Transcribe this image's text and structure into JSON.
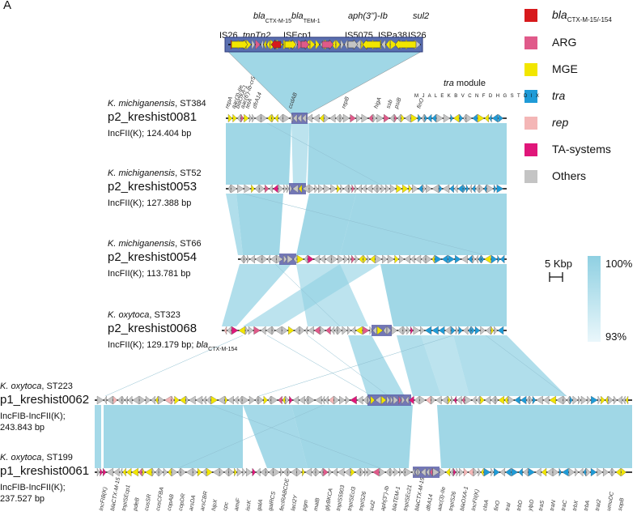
{
  "panel_label": "A",
  "top_labels": [
    "IS26",
    "tnpTn2",
    "blaCTX-M-15",
    "blaTEM-1",
    "ISEcp1",
    "aph(3'')-Ib",
    "IS5075",
    "sul2",
    "ISPa38",
    "IS26"
  ],
  "top_label_display": {
    "is26_left": "IS26",
    "tnptn2": "tnpTn2",
    "bla_ctx_main": "bla",
    "bla_ctx_sub": "CTX-M-15",
    "bla_tem_main": "bla",
    "bla_tem_sub": "TEM-1",
    "isecp1": "ISEcp1",
    "aph": "aph(3'')-Ib",
    "is5075": "IS5075",
    "sul2": "sul2",
    "ispa38": "ISPa38",
    "is26_right": "IS26"
  },
  "legend": {
    "items": [
      {
        "main": "bla",
        "sub": "CTX-M-15/-154",
        "color": "#d7191c"
      },
      {
        "main": "ARG",
        "sub": "",
        "color": "#e05a8a"
      },
      {
        "main": "MGE",
        "sub": "",
        "color": "#f2e600"
      },
      {
        "main": "tra",
        "sub": "",
        "color": "#1f9bd7"
      },
      {
        "main": "rep",
        "sub": "",
        "color": "#f4b6b6"
      },
      {
        "main": "TA-systems",
        "sub": "",
        "color": "#e0167a"
      },
      {
        "main": "Others",
        "sub": "",
        "color": "#c4c4c4"
      }
    ],
    "scale_label": "5 Kbp",
    "identity_max": "100%",
    "identity_min": "93%"
  },
  "plasmids": [
    {
      "species": "K. michiganensis",
      "st": ", ST384",
      "name": "p2_kreshist0081",
      "inc": "IncFII(K); 124.404 bp",
      "inc_extra": ""
    },
    {
      "species": "K. michiganensis",
      "st": ", ST52",
      "name": "p2_kreshist0053",
      "inc": "IncFII(K); 127.388 bp",
      "inc_extra": ""
    },
    {
      "species": "K. michiganensis",
      "st": ", ST66",
      "name": "p2_kreshist0054",
      "inc": "IncFII(K); 113.781 bp",
      "inc_extra": ""
    },
    {
      "species": "K. oxytoca",
      "st": ", ST323",
      "name": "p2_kreshist0068",
      "inc": "IncFII(K); 129.179 bp; ",
      "inc_extra": "bla",
      "inc_extra_sub": "CTX-M-154"
    },
    {
      "species": "K. oxytoca",
      "st": ", ST223",
      "name": "p1_kreshist0062",
      "inc": "IncFIB-IncFII(K);",
      "inc2": "243.843 bp"
    },
    {
      "species": "K. oxytoca",
      "st": ", ST199",
      "name": "p1_kreshist0061",
      "inc": "IncFIB-IncFII(K);",
      "inc2": "237.527 bp"
    }
  ],
  "tra_module": {
    "label": "tra module",
    "letters": "M J A L E K B V C N F D H G S T D I X"
  },
  "genes_0081": [
    "repA",
    "aac(3)-IIe",
    "blaOXA-1",
    "aac(6')-Ib-cr5",
    "tetA",
    "dfrA14",
    "ccdAB",
    "repB",
    "higA",
    "ssb",
    "psiB",
    "finO"
  ],
  "genes_0061": [
    "IncFIB(K)",
    "blaCTX-M-15",
    "tnpISEcp1",
    "pdeB",
    "cusSR",
    "cusCFBA",
    "copAB",
    "copDR",
    "arsDA",
    "arsCBR",
    "hipX",
    "cpc",
    "amiF",
    "iscK",
    "galA",
    "galRCS",
    "fecIRABCDE",
    "lacI2Y",
    "pgm",
    "malB",
    "glyBKCA",
    "tnpIS5903",
    "tnpISEcl3",
    "tnpIS26",
    "sul2",
    "aph(3'')-Ib",
    "blaTEM-1",
    "tnpISEc21",
    "blaCTX-M-15",
    "dfrA14",
    "aac(3)-IIe",
    "tnpIS26",
    "blaOXA-1",
    "IncFII(K)",
    "cloA",
    "finO",
    "traI",
    "trbD",
    "ylpD",
    "traS",
    "traN",
    "traC",
    "trbX",
    "trbA",
    "traI2",
    "umuDC",
    "sopB"
  ]
}
